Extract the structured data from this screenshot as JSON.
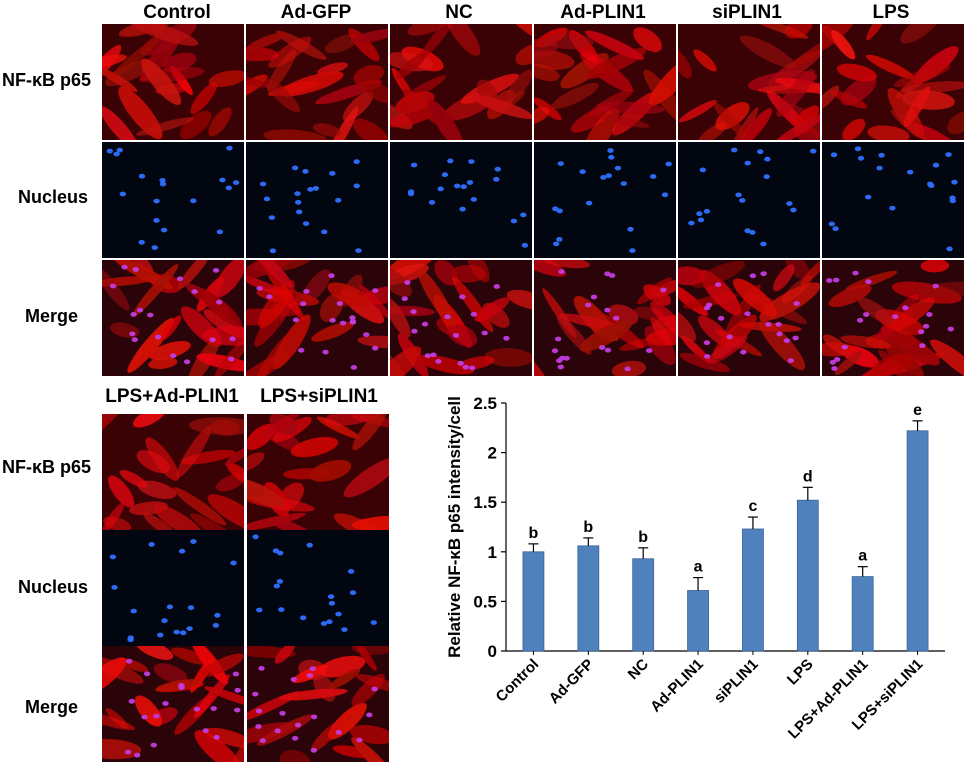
{
  "figure": {
    "columns": [
      "Control",
      "Ad-GFP",
      "NC",
      "Ad-PLIN1",
      "siPLIN1",
      "LPS"
    ],
    "columns_bottom": [
      "LPS+Ad-PLIN1",
      "LPS+siPLIN1"
    ],
    "rows": [
      "NF-κB p65",
      "Nucleus",
      "Merge"
    ]
  },
  "chart_data": {
    "type": "bar",
    "categories": [
      "Control",
      "Ad-GFP",
      "NC",
      "Ad-PLIN1",
      "siPLIN1",
      "LPS",
      "LPS+Ad-PLIN1",
      "LPS+siPLIN1"
    ],
    "values": [
      1.0,
      1.06,
      0.93,
      0.61,
      1.23,
      1.52,
      0.75,
      2.22
    ],
    "errors": [
      0.08,
      0.08,
      0.11,
      0.13,
      0.12,
      0.13,
      0.1,
      0.1
    ],
    "significance": [
      "b",
      "b",
      "b",
      "a",
      "c",
      "d",
      "a",
      "e"
    ],
    "ylabel": "Relative NF-κB  p65 intensity/cell",
    "ylim": [
      0,
      2.5
    ],
    "yticks": [
      "0",
      "0.5",
      "1",
      "1.5",
      "2",
      "2.5"
    ],
    "bar_color": "#4f81bd"
  }
}
